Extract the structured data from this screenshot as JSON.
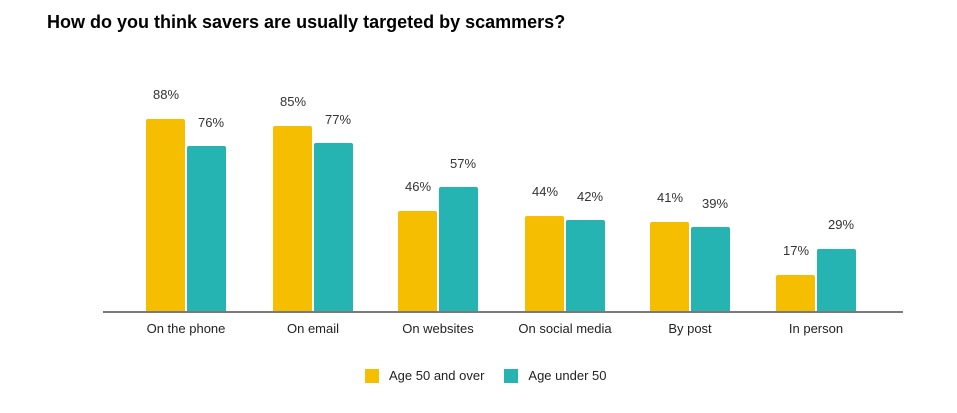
{
  "title": "How do you think savers are usually targeted by scammers?",
  "legend": [
    {
      "label": "Age 50 and over",
      "color": "#F6BE00"
    },
    {
      "label": "Age under 50",
      "color": "#25B4B1"
    }
  ],
  "chart_data": {
    "type": "bar",
    "title": "How do you think savers are usually targeted by scammers?",
    "xlabel": "",
    "ylabel": "",
    "categories": [
      "On the phone",
      "On email",
      "On websites",
      "On social media",
      "By post",
      "In person"
    ],
    "series": [
      {
        "name": "Age 50 and over",
        "color": "#F6BE00",
        "values": [
          88,
          85,
          46,
          44,
          41,
          17
        ],
        "labels": [
          "88%",
          "85%",
          "46%",
          "44%",
          "41%",
          "17%"
        ]
      },
      {
        "name": "Age under 50",
        "color": "#25B4B1",
        "values": [
          76,
          77,
          57,
          42,
          39,
          29
        ],
        "labels": [
          "76%",
          "77%",
          "57%",
          "42%",
          "39%",
          "29%"
        ]
      }
    ],
    "ylim": [
      0,
      100
    ],
    "grid": false,
    "legend_position": "bottom"
  }
}
